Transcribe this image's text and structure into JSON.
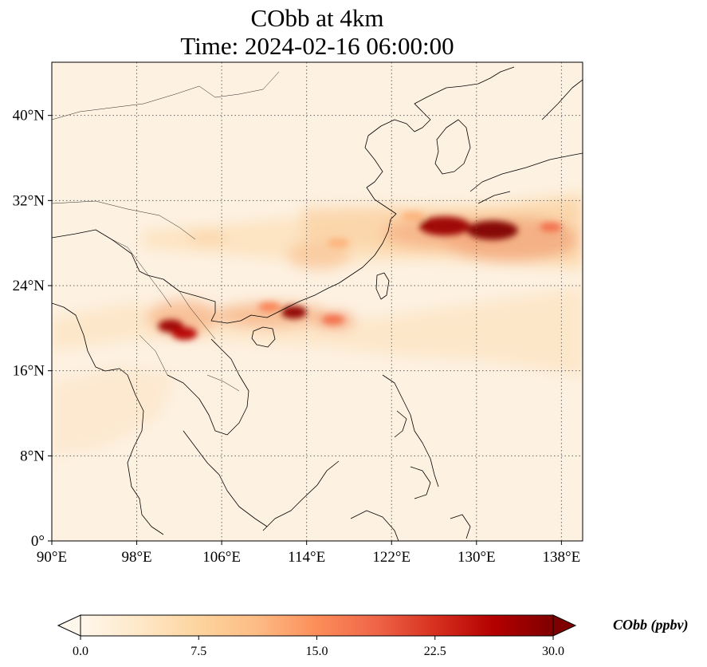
{
  "title_line1": "CObb at 4km",
  "title_line2": "Time: 2024-02-16 06:00:00",
  "map": {
    "lon_range": [
      90,
      140
    ],
    "lat_range": [
      0,
      45
    ],
    "lon_ticks": [
      {
        "value": 90,
        "label": "90°E"
      },
      {
        "value": 98,
        "label": "98°E"
      },
      {
        "value": 106,
        "label": "106°E"
      },
      {
        "value": 114,
        "label": "114°E"
      },
      {
        "value": 122,
        "label": "122°E"
      },
      {
        "value": 130,
        "label": "130°E"
      },
      {
        "value": 138,
        "label": "138°E"
      }
    ],
    "lat_ticks": [
      {
        "value": 0,
        "label": "0°"
      },
      {
        "value": 8,
        "label": "8°N"
      },
      {
        "value": 16,
        "label": "16°N"
      },
      {
        "value": 24,
        "label": "24°N"
      },
      {
        "value": 32,
        "label": "32°N"
      },
      {
        "value": 40,
        "label": "40°N"
      }
    ],
    "gridlines": "dotted",
    "colormap": "OrRd",
    "plumes": [
      {
        "lon": 131.5,
        "lat": 29.2,
        "value": 30
      },
      {
        "lon": 127.0,
        "lat": 29.6,
        "value": 28
      },
      {
        "lon": 112.8,
        "lat": 21.5,
        "value": 29
      },
      {
        "lon": 101.2,
        "lat": 20.2,
        "value": 28
      },
      {
        "lon": 102.5,
        "lat": 19.5,
        "value": 26
      },
      {
        "lon": 116.5,
        "lat": 20.8,
        "value": 18
      },
      {
        "lon": 110.5,
        "lat": 22.0,
        "value": 16
      },
      {
        "lon": 117.0,
        "lat": 28.0,
        "value": 12
      },
      {
        "lon": 124.0,
        "lat": 30.5,
        "value": 12
      },
      {
        "lon": 137.0,
        "lat": 29.5,
        "value": 18
      }
    ]
  },
  "colorbar": {
    "label": "CObb (ppbv)",
    "min": 0.0,
    "max": 30.0,
    "extend": "both",
    "ticks": [
      {
        "value": 0.0,
        "label": "0.0"
      },
      {
        "value": 7.5,
        "label": "7.5"
      },
      {
        "value": 15.0,
        "label": "15.0"
      },
      {
        "value": 22.5,
        "label": "22.5"
      },
      {
        "value": 30.0,
        "label": "30.0"
      }
    ],
    "colors": [
      "#fff7ec",
      "#fee8c8",
      "#fdd49e",
      "#fdbb84",
      "#fc8d59",
      "#ef6548",
      "#d7301f",
      "#b30000",
      "#7f0000"
    ]
  }
}
